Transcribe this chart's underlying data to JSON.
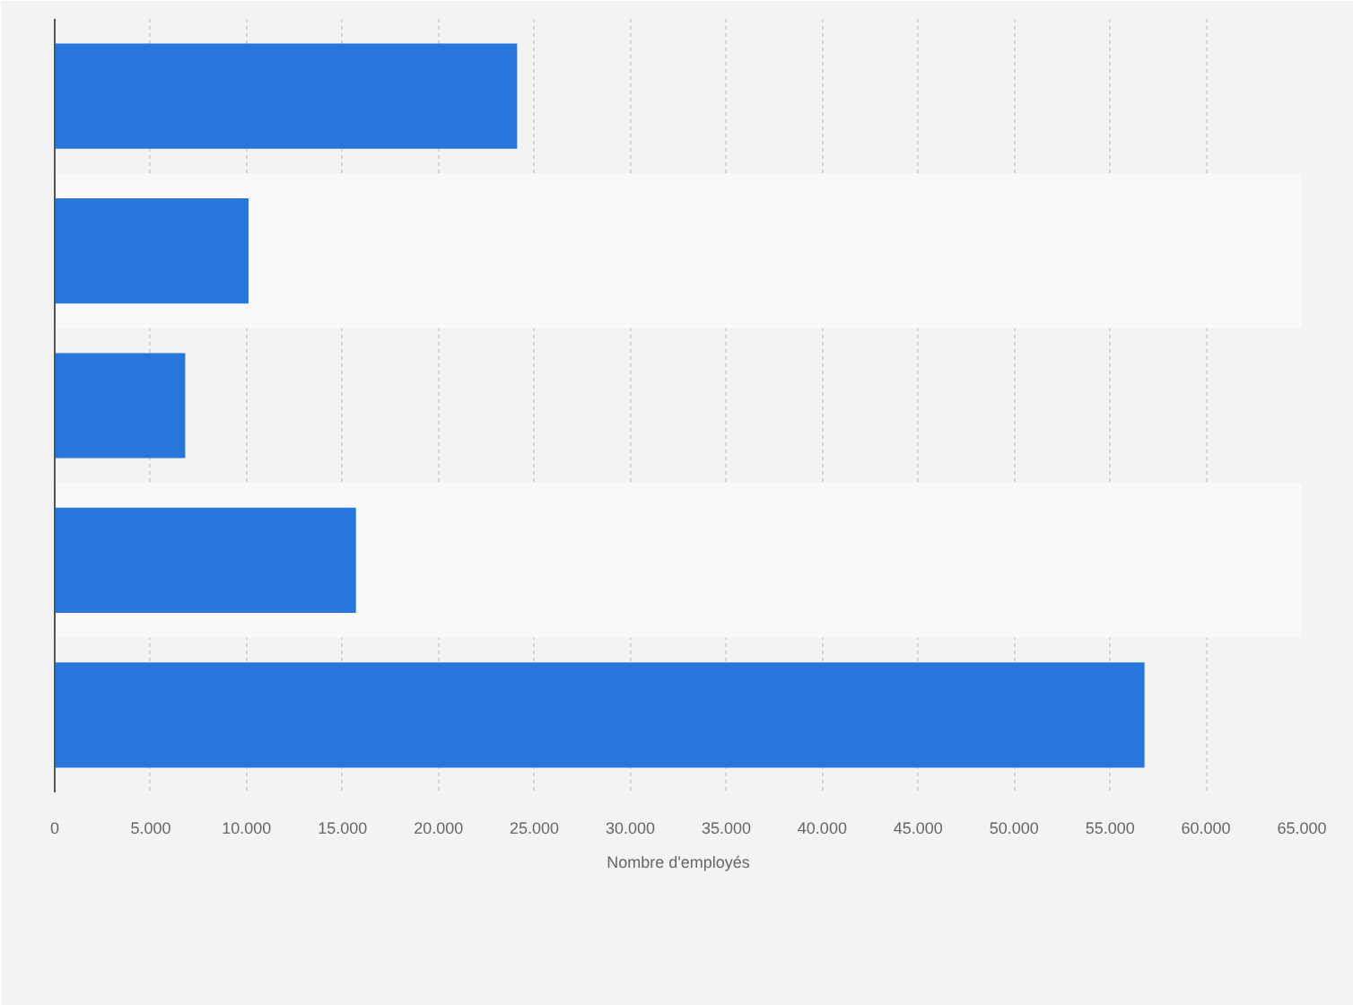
{
  "chart_data": {
    "type": "bar",
    "orientation": "horizontal",
    "categories": [
      null,
      null,
      null,
      null,
      null
    ],
    "values": [
      24100,
      10100,
      6800,
      15700,
      56800
    ],
    "color": "#2776db",
    "xlabel": "Nombre d'employés",
    "xlim": [
      0,
      65000
    ],
    "xticks": [
      0,
      {
        "value": 5000,
        "label": "5.000"
      },
      {
        "value": 10000,
        "label": "10.000"
      },
      {
        "value": 15000,
        "label": "15.000"
      },
      {
        "value": 20000,
        "label": "20.000"
      },
      {
        "value": 25000,
        "label": "25.000"
      },
      {
        "value": 30000,
        "label": "30.000"
      },
      {
        "value": 35000,
        "label": "35.000"
      },
      {
        "value": 40000,
        "label": "40.000"
      },
      {
        "value": 45000,
        "label": "45.000"
      },
      {
        "value": 50000,
        "label": "50.000"
      },
      {
        "value": 55000,
        "label": "55.000"
      },
      {
        "value": 60000,
        "label": "60.000"
      },
      {
        "value": 65000,
        "label": "65.000"
      }
    ],
    "grid": "x",
    "tick_labels": "x"
  }
}
